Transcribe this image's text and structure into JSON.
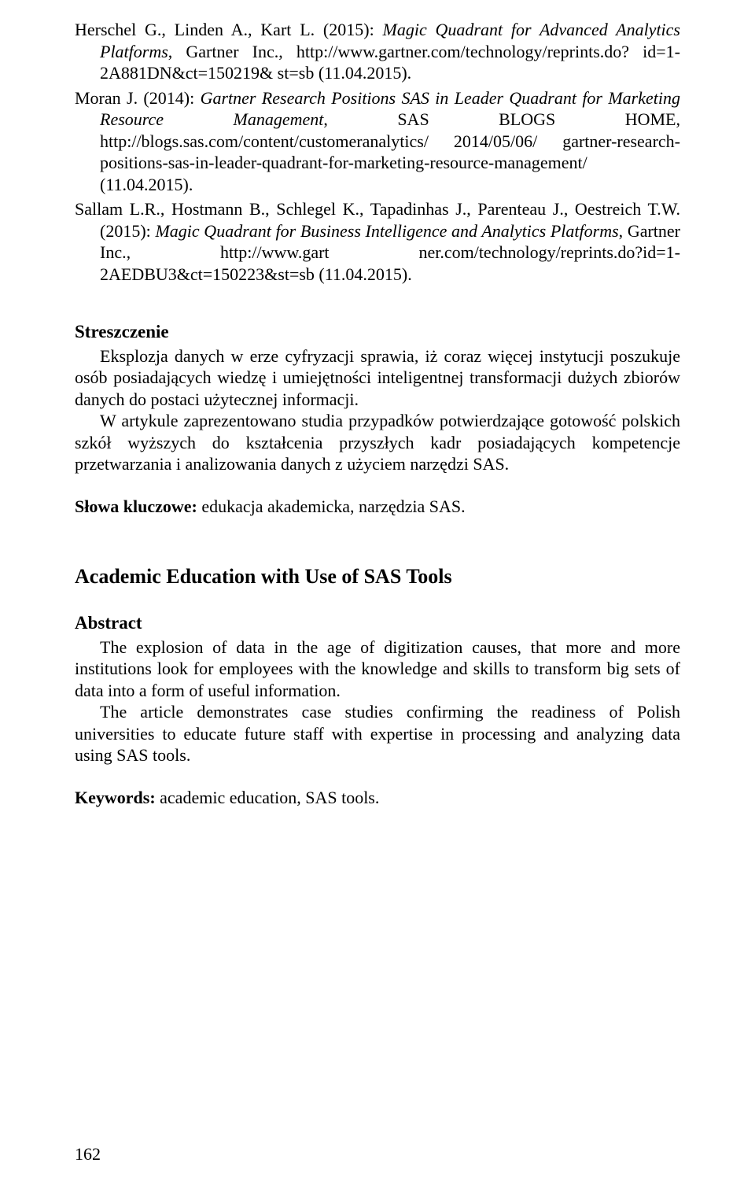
{
  "refs": {
    "r1": {
      "authors": "Herschel G., Linden A., Kart L. (2015): ",
      "title": "Magic Quadrant for Advanced Analytics Platforms",
      "rest": ", Gartner Inc., http://www.gartner.com/technology/reprints.do? id=1-2A881DN&ct=150219& st=sb (11.04.2015)."
    },
    "r2": {
      "authors": "Moran J. (2014): ",
      "title": "Gartner Research Positions SAS in Leader Quadrant for Marketing Resource Management",
      "rest": ", SAS BLOGS HOME, http://blogs.sas.com/content/customeranalytics/ 2014/05/06/ gartner-research-positions-sas-in-leader-quadrant-for-marketing-resource-management/ (11.04.2015)."
    },
    "r3": {
      "authors": "Sallam L.R., Hostmann B., Schlegel K., Tapadinhas J., Parenteau J., Oestreich T.W. (2015): ",
      "title": "Magic Quadrant for Business Intelligence and Analytics Platforms",
      "rest": ", Gartner Inc., http://www.gart ner.com/technology/reprints.do?id=1-2AEDBU3&ct=150223&st=sb (11.04.2015)."
    }
  },
  "polish": {
    "heading": "Streszczenie",
    "p1": "Eksplozja danych w erze cyfryzacji sprawia, iż coraz więcej instytucji poszukuje osób posiadających wiedzę i umiejętności inteligentnej transformacji dużych zbiorów danych do postaci użytecznej informacji.",
    "p2": "W artykule zaprezentowano studia przypadków potwierdzające gotowość polskich szkół wyższych do kształcenia przyszłych kadr posiadających kompetencje przetwarzania i analizowania danych z użyciem narzędzi SAS.",
    "kw_label": "Słowa kluczowe: ",
    "kw_text": "edukacja akademicka, narzędzia SAS."
  },
  "english": {
    "title": "Academic Education with Use of SAS Tools",
    "heading": "Abstract",
    "p1": "The explosion of data in the age of digitization causes, that more and more institutions look for employees with the knowledge and skills to transform big sets of data into a form of useful information.",
    "p2": "The article demonstrates case studies confirming the readiness of Polish universities to educate future staff with expertise in processing and analyzing data using SAS tools.",
    "kw_label": "Keywords: ",
    "kw_text": "academic education, SAS tools."
  },
  "page_number": "162"
}
